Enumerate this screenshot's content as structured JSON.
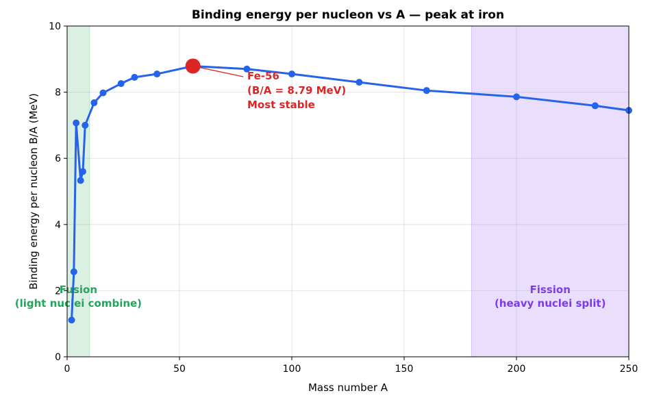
{
  "chart_data": {
    "type": "line",
    "title": "Binding energy per nucleon vs A — peak at iron",
    "xlabel": "Mass number A",
    "ylabel": "Binding energy per nucleon B/A (MeV)",
    "xlim": [
      0,
      250
    ],
    "ylim": [
      0,
      10
    ],
    "xticks": [
      "0",
      "50",
      "100",
      "150",
      "200",
      "250"
    ],
    "yticks": [
      "0",
      "2",
      "4",
      "6",
      "8",
      "10"
    ],
    "grid": true,
    "series": [
      {
        "x": [
          2,
          3,
          4,
          6,
          7,
          8,
          12,
          16,
          24,
          30,
          40,
          56,
          80,
          100,
          130,
          160,
          200,
          235,
          250
        ],
        "values": [
          1.11,
          2.57,
          7.07,
          5.33,
          5.6,
          7.0,
          7.68,
          7.98,
          8.26,
          8.45,
          8.55,
          8.79,
          8.7,
          8.55,
          8.3,
          8.05,
          7.86,
          7.59,
          7.45
        ],
        "color": "#2563eb"
      }
    ],
    "highlight": {
      "x": 56,
      "y": 8.79,
      "color": "#dc2626",
      "label_lines": [
        "Fe-56",
        "(B/A = 8.79 MeV)",
        "Most stable"
      ]
    },
    "regions": [
      {
        "x_from": 0,
        "x_to": 10,
        "color": "#22a55a",
        "label_lines": [
          "Fusion",
          "(light nuclei combine)"
        ]
      },
      {
        "x_from": 180,
        "x_to": 250,
        "color": "#7c3aed",
        "label_lines": [
          "Fission",
          "(heavy nuclei split)"
        ]
      }
    ]
  }
}
